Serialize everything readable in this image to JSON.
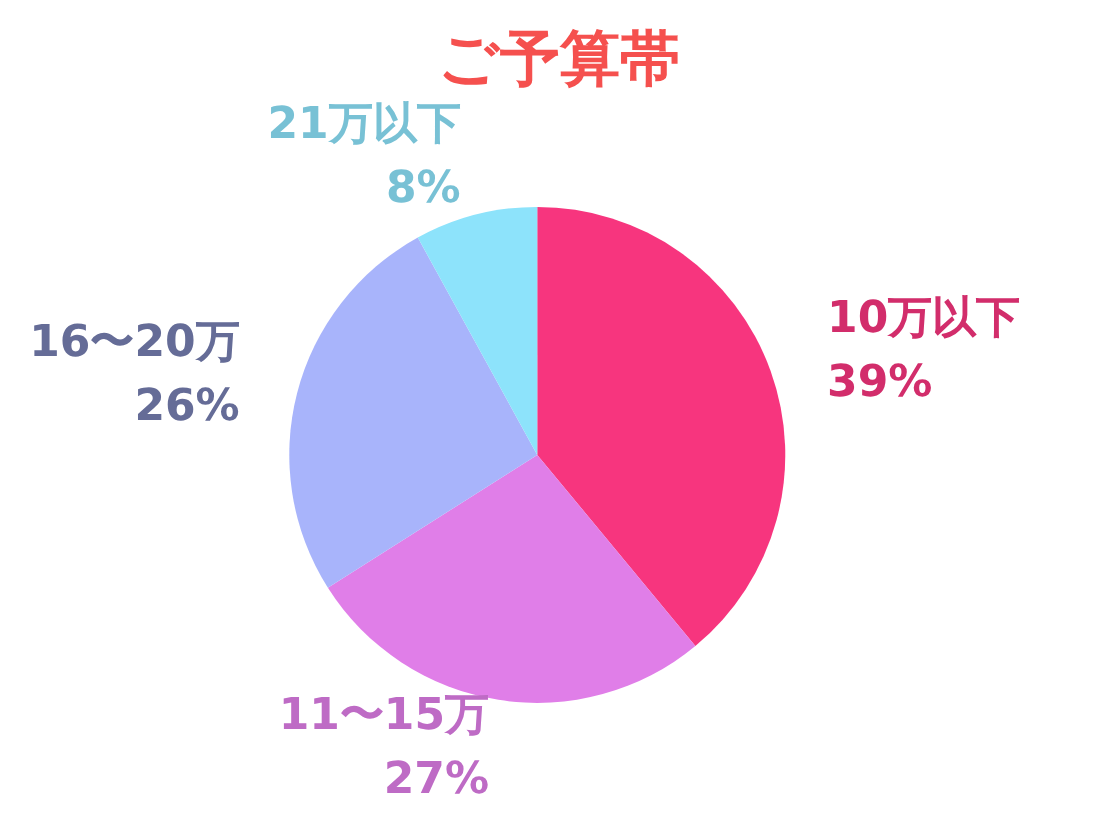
{
  "chart_data": {
    "type": "pie",
    "title": "ご予算帯",
    "categories": [
      "10万以下",
      "11〜15万",
      "16〜20万",
      "21万以下"
    ],
    "values": [
      39,
      27,
      26,
      8
    ],
    "colors": [
      "#f7357e",
      "#e07ee8",
      "#a8b4fb",
      "#8de3fb"
    ],
    "value_labels": [
      "39%",
      "27%",
      "26%",
      "8%"
    ],
    "legend": false
  }
}
